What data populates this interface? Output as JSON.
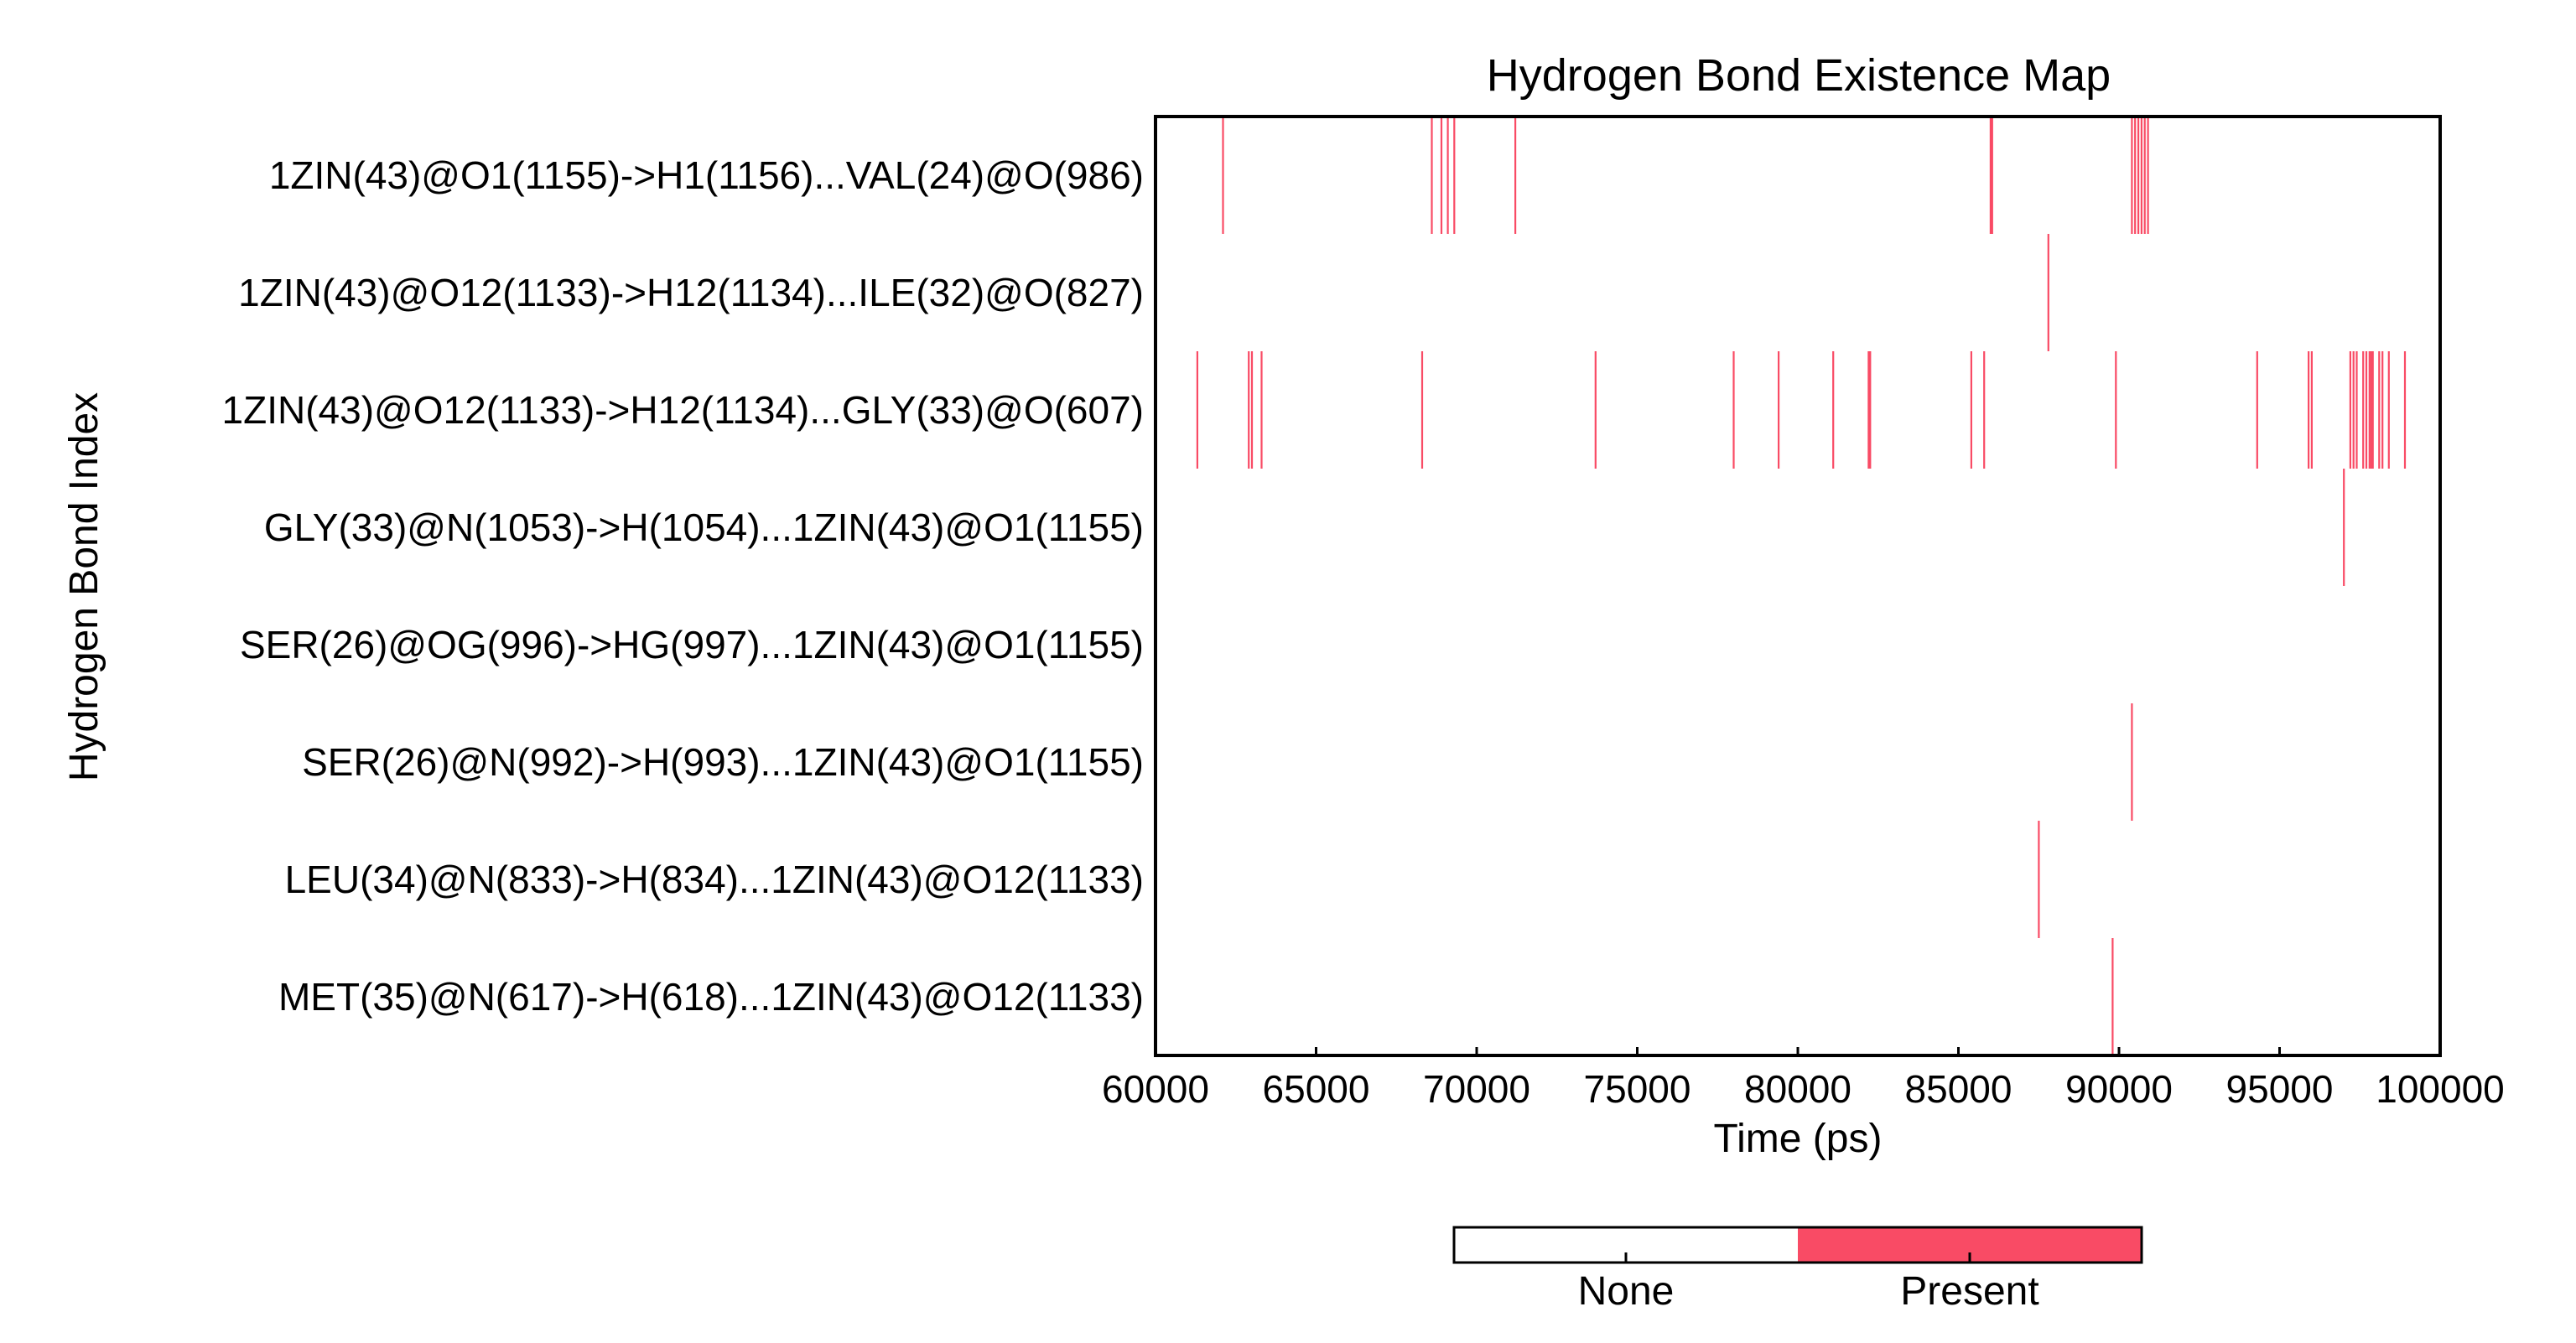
{
  "chart_data": {
    "type": "heatmap",
    "title": "Hydrogen Bond Existence Map",
    "xlabel": "Time (ps)",
    "ylabel": "Hydrogen Bond Index",
    "xlim": [
      60000,
      100000
    ],
    "xticks": [
      60000,
      65000,
      70000,
      75000,
      80000,
      85000,
      90000,
      95000,
      100000
    ],
    "rows": [
      "1ZIN(43)@O1(1155)->H1(1156)...VAL(24)@O(986)",
      "1ZIN(43)@O12(1133)->H12(1134)...ILE(32)@O(827)",
      "1ZIN(43)@O12(1133)->H12(1134)...GLY(33)@O(607)",
      "GLY(33)@N(1053)->H(1054)...1ZIN(43)@O1(1155)",
      "SER(26)@OG(996)->HG(997)...1ZIN(43)@O1(1155)",
      "SER(26)@N(992)->H(993)...1ZIN(43)@O1(1155)",
      "LEU(34)@N(833)->H(834)...1ZIN(43)@O12(1133)",
      "MET(35)@N(617)->H(618)...1ZIN(43)@O12(1133)"
    ],
    "events": [
      [
        62100,
        68600,
        68900,
        69100,
        69300,
        71200,
        86000,
        86050,
        90400,
        90500,
        90600,
        90700,
        90800,
        90900
      ],
      [
        87800
      ],
      [
        61300,
        62900,
        63000,
        63300,
        68300,
        73700,
        78000,
        79400,
        81100,
        82200,
        82250,
        85400,
        85800,
        89900,
        94300,
        95900,
        96000,
        97200,
        97300,
        97400,
        97600,
        97700,
        97800,
        97850,
        97900,
        98100,
        98200,
        98400,
        98900
      ],
      [
        97000
      ],
      [],
      [
        90400
      ],
      [
        87500
      ],
      [
        89800
      ]
    ],
    "colorbar": {
      "labels": [
        "None",
        "Present"
      ],
      "colors": [
        "#ffffff",
        "#f94b65"
      ]
    },
    "grid": false
  }
}
